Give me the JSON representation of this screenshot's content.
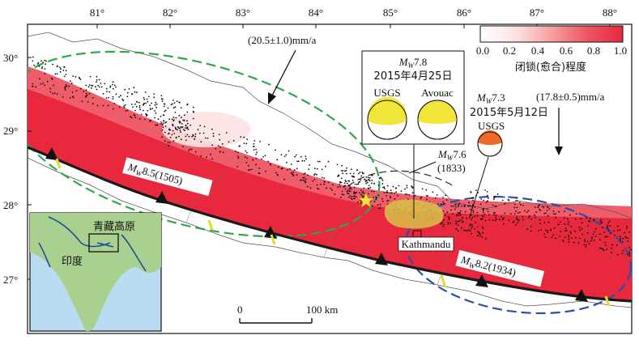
{
  "axes": {
    "lon_ticks": [
      "81°",
      "82°",
      "83°",
      "84°",
      "85°",
      "86°",
      "87°",
      "88°"
    ],
    "lat_ticks": [
      "30°",
      "29°",
      "28°",
      "27°"
    ]
  },
  "colorbar": {
    "ticks": [
      "0.0",
      "0.2",
      "0.4",
      "0.6",
      "0.8",
      "1.0"
    ],
    "label": "闭锁(愈合)程度",
    "colors": [
      "#ffffff",
      "#e8283c"
    ]
  },
  "velocities": [
    {
      "text": "(20.5±1.0)mm/a"
    },
    {
      "text": "(17.8±0.5)mm/a"
    }
  ],
  "events": {
    "main": {
      "mw": "M",
      "sub": "W",
      "mag": "7.8",
      "date": "2015年4月25日",
      "solutions": [
        "USGS",
        "Avouac"
      ]
    },
    "aftershock": {
      "mw": "M",
      "sub": "W",
      "mag": "7.3",
      "date": "2015年5月12日",
      "source": "USGS"
    },
    "hist1833": {
      "mw": "M",
      "sub": "W",
      "mag": "7.6",
      "year": "(1833)"
    },
    "hist1505": {
      "mw": "M",
      "sub": "W",
      "mag": "8.5(1505)"
    },
    "hist1934": {
      "mw": "M",
      "sub": "W",
      "mag": "8.2(1934)"
    }
  },
  "city": "Kathmandu",
  "scalebar": {
    "start": "0",
    "end": "100 km"
  },
  "inset": {
    "plateau": "青藏高原",
    "country": "印度"
  },
  "colors": {
    "locking": "#e8283c",
    "fault": "#1a1a1a",
    "ellipse_green": "#2aa84a",
    "ellipse_blue": "#2b4fa8",
    "rupture": "#d9c24a",
    "seismicity": "#111111",
    "star": "#f5e04a",
    "inset_sea": "#b9dcf0",
    "inset_land": "#a9d08e"
  }
}
